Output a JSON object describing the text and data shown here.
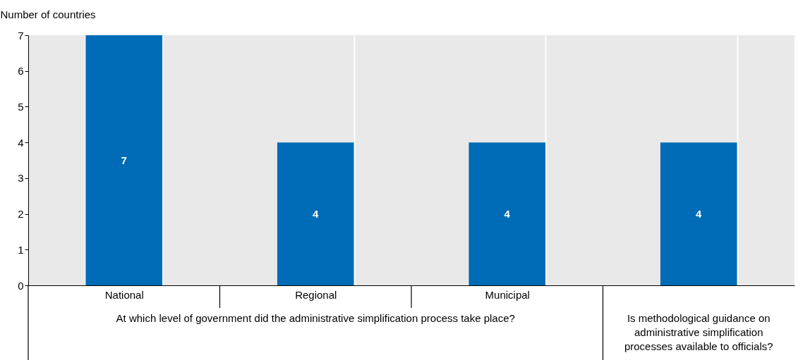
{
  "chart_data": {
    "type": "bar",
    "ylabel": "Number of countries",
    "categories": [
      "National",
      "Regional",
      "Municipal",
      null
    ],
    "values": [
      7,
      4,
      4,
      4
    ],
    "color": "#006bb6",
    "ylim": [
      0,
      7
    ],
    "yticks": [
      0,
      1,
      2,
      3,
      4,
      5,
      6,
      7
    ],
    "grid": "x",
    "data_labels": true,
    "annotations": [
      "At which level of government did the administrative simplification process take place?",
      "Is methodological guidance on administrative simplification processes available to officials?"
    ]
  }
}
